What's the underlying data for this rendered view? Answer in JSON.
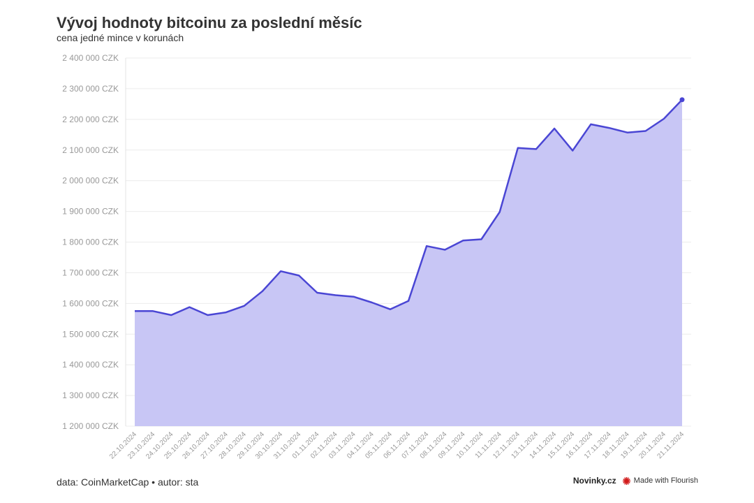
{
  "title": "Vývoj hodnoty bitcoinu za poslední měsíc",
  "subtitle": "cena jedné mince v korunách",
  "footer": {
    "source": "data: CoinMarketCap • autor: sta",
    "brand": "Novinky.cz",
    "flourish": "Made with Flourish"
  },
  "colors": {
    "line": "#4a46d4",
    "fill": "#c8c6f5",
    "flourish_icon": "#d11a1a"
  },
  "icons": {
    "flourish": "flourish-logo-icon"
  },
  "chart_data": {
    "type": "area",
    "x": [
      "22.10.2024",
      "23.10.2024",
      "24.10.2024",
      "25.10.2024",
      "26.10.2024",
      "27.10.2024",
      "28.10.2024",
      "29.10.2024",
      "30.10.2024",
      "31.10.2024",
      "01.11.2024",
      "02.11.2024",
      "03.11.2024",
      "04.11.2024",
      "05.11.2024",
      "06.11.2024",
      "07.11.2024",
      "08.11.2024",
      "09.11.2024",
      "10.11.2024",
      "11.11.2024",
      "12.11.2024",
      "13.11.2024",
      "14.11.2024",
      "15.11.2024",
      "16.11.2024",
      "17.11.2024",
      "18.11.2024",
      "19.11.2024",
      "20.11.2024",
      "21.11.2024"
    ],
    "values": [
      1575000,
      1575000,
      1562000,
      1588000,
      1562000,
      1571000,
      1592000,
      1640000,
      1705000,
      1691000,
      1635000,
      1627000,
      1622000,
      1603000,
      1581000,
      1608000,
      1787000,
      1775000,
      1805000,
      1809000,
      1898000,
      2107000,
      2103000,
      2170000,
      2098000,
      2184000,
      2172000,
      2157000,
      2162000,
      2202000,
      2264000
    ],
    "y_ticks": [
      "2 400 000 CZK",
      "2 300 000 CZK",
      "2 200 000 CZK",
      "2 100 000 CZK",
      "2 000 000 CZK",
      "1 900 000 CZK",
      "1 800 000 CZK",
      "1 700 000 CZK",
      "1 600 000 CZK",
      "1 500 000 CZK",
      "1 400 000 CZK",
      "1 300 000 CZK",
      "1 200 000 CZK"
    ],
    "y_tick_values": [
      2400000,
      2300000,
      2200000,
      2100000,
      2000000,
      1900000,
      1800000,
      1700000,
      1600000,
      1500000,
      1400000,
      1300000,
      1200000
    ],
    "ylim": [
      1200000,
      2400000
    ],
    "grid": true,
    "legend": "none"
  }
}
